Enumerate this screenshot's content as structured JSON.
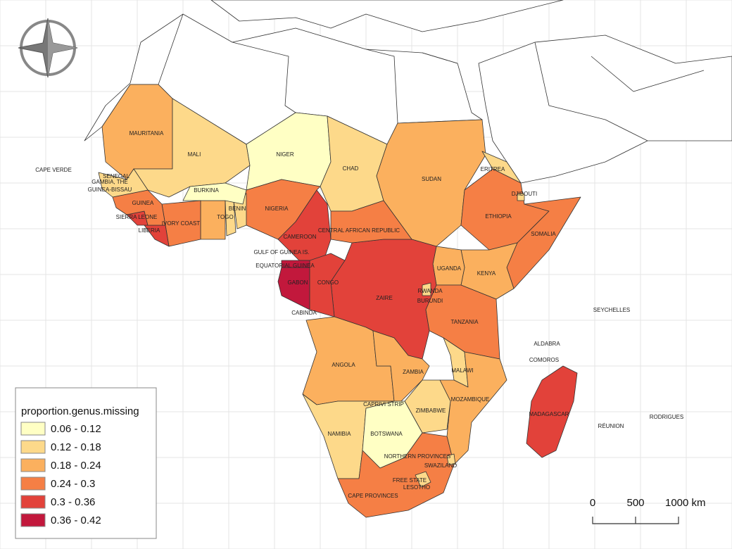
{
  "map": {
    "labels": [
      "MAURITANIA",
      "MALI",
      "NIGER",
      "CHAD",
      "SUDAN",
      "ERITREA",
      "DJIBOUTI",
      "ETHIOPIA",
      "SOMALIA",
      "CAPE VERDE",
      "SENEGAL",
      "GAMBIA, THE",
      "GUINEA-BISSAU",
      "GUINEA",
      "SIERRA LEONE",
      "LIBERIA",
      "IVORY COAST",
      "BURKINA",
      "TOGO",
      "BENIN",
      "NIGERIA",
      "CAMEROON",
      "CENTRAL AFRICAN REPUBLIC",
      "GULF OF GUINEA IS.",
      "EQUATORIAL GUINEA",
      "GABON",
      "CONGO",
      "CABINDA",
      "UGANDA",
      "KENYA",
      "ZAIRE",
      "RWANDA",
      "BURUNDI",
      "TANZANIA",
      "SEYCHELLES",
      "ALDABRA",
      "COMOROS",
      "ANGOLA",
      "ZAMBIA",
      "MALAWI",
      "CAPRIVI STRIP",
      "ZIMBABWE",
      "MOZAMBIQUE",
      "MADAGASCAR",
      "NAMIBIA",
      "BOTSWANA",
      "NORTHERN PROVINCES",
      "SWAZILAND",
      "FREE STATE",
      "LESOTHO",
      "CAPE PROVINCES",
      "RÉUNION",
      "RODRIGUES"
    ],
    "legend": {
      "title": "proportion.genus.missing",
      "items": [
        {
          "label": "0.06 - 0.12",
          "color": "#ffffc4"
        },
        {
          "label": "0.12 - 0.18",
          "color": "#fdd98a"
        },
        {
          "label": "0.18 - 0.24",
          "color": "#fbb05e"
        },
        {
          "label": "0.24 - 0.3",
          "color": "#f57f45"
        },
        {
          "label": "0.3 - 0.36",
          "color": "#e2423a"
        },
        {
          "label": "0.36 - 0.42",
          "color": "#c2183c"
        }
      ]
    },
    "scale_bar": [
      "0",
      "500",
      "1000 km"
    ]
  }
}
